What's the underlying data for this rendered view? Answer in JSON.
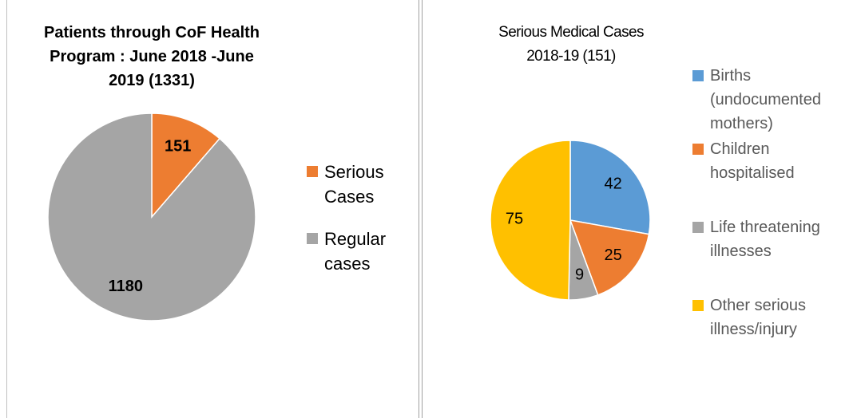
{
  "chart_data": [
    {
      "type": "pie",
      "title": "Patients through CoF Health Program : June 2018 -June 2019 (1331)",
      "categories": [
        "Serious Cases",
        "Regular cases"
      ],
      "values": [
        151,
        1180
      ],
      "colors": [
        "#ed7d31",
        "#a5a5a5"
      ]
    },
    {
      "type": "pie",
      "title": "Serious Medical Cases 2018-19 (151)",
      "categories": [
        "Births (undocumented mothers)",
        "Children hospitalised",
        "Life threatening illnesses",
        "Other serious illness/injury"
      ],
      "values": [
        42,
        25,
        9,
        75
      ],
      "colors": [
        "#5b9bd5",
        "#ed7d31",
        "#a5a5a5",
        "#ffc000"
      ]
    }
  ]
}
